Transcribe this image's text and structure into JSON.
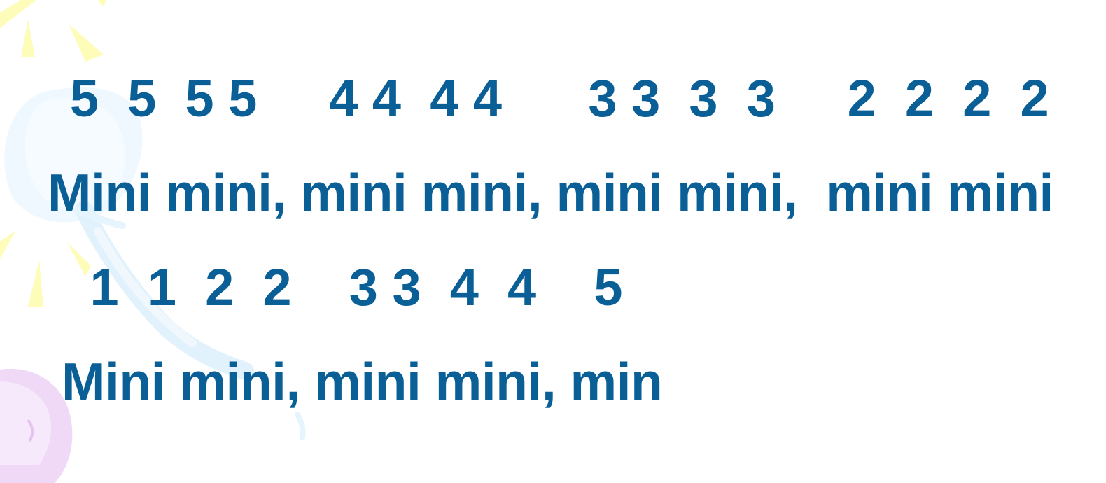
{
  "slide": {
    "lines": [
      {
        "kind": "notes",
        "text": "5  5  5 5     4 4  4 4      3 3  3  3     2  2  2  2"
      },
      {
        "kind": "lyrics",
        "text": "Mini mini, mini mini, mini mini,  mini mini"
      },
      {
        "kind": "notes",
        "text": " 1  1  2  2    3 3  4  4    5"
      },
      {
        "kind": "lyrics",
        "text": "Mini mini, mini mini, min"
      }
    ]
  },
  "colors": {
    "text": "#0a5f97",
    "background": "#ffffff",
    "decor_yellow": "#fdfcb8",
    "decor_blue": "#e6f4fd",
    "decor_purple": "#efd9f7"
  }
}
